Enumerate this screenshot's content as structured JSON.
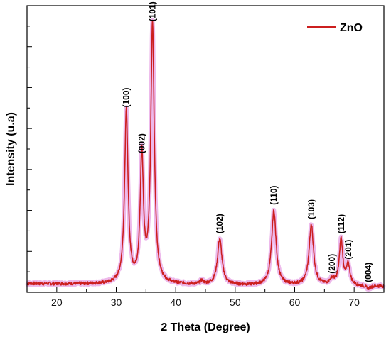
{
  "chart_data": {
    "type": "line",
    "xlabel": "2 Theta (Degree)",
    "ylabel": "Intensity (u.a)",
    "xlim": [
      15,
      75
    ],
    "ylim": [
      0,
      100
    ],
    "x_ticks": [
      "20",
      "30",
      "40",
      "50",
      "60",
      "70"
    ],
    "x_tick_values": [
      20,
      30,
      40,
      50,
      60,
      70
    ],
    "y_tick_labels_shown": false,
    "grid": false,
    "legend_position": "top-right",
    "series": [
      {
        "name": "ZnO",
        "color": "#cc1f1f",
        "baseline": 3,
        "peaks": [
          {
            "label": "(100)",
            "x": 31.7,
            "y": 63
          },
          {
            "label": "(002)",
            "x": 34.3,
            "y": 47
          },
          {
            "label": "(101)",
            "x": 36.1,
            "y": 93
          },
          {
            "label": "(102)",
            "x": 47.4,
            "y": 19
          },
          {
            "label": "(110)",
            "x": 56.5,
            "y": 29
          },
          {
            "label": "(103)",
            "x": 62.8,
            "y": 24
          },
          {
            "label": "(200)",
            "x": 66.3,
            "y": 5
          },
          {
            "label": "(112)",
            "x": 67.8,
            "y": 19
          },
          {
            "label": "(201)",
            "x": 69.0,
            "y": 10
          },
          {
            "label": "(004)",
            "x": 72.4,
            "y": 2
          }
        ]
      }
    ]
  }
}
